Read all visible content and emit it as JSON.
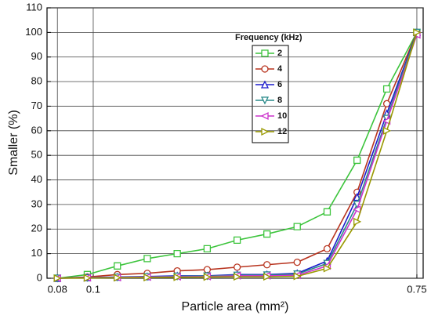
{
  "chart_data": {
    "type": "line",
    "x_label": "Particle area (mm²)",
    "y_label": "Smaller (%)",
    "legend_title": "Frequency (kHz)",
    "xscale": "log",
    "grid": true,
    "xlim": [
      0.075,
      0.78
    ],
    "xticks": [
      0.08,
      0.1,
      0.75
    ],
    "ylim": [
      0,
      110
    ],
    "yticks": [
      0,
      10,
      20,
      30,
      40,
      50,
      60,
      70,
      80,
      90,
      100,
      110
    ],
    "x": [
      0.08,
      0.0964,
      0.1162,
      0.14,
      0.1687,
      0.2033,
      0.245,
      0.295,
      0.356,
      0.429,
      0.517,
      0.622,
      0.75
    ],
    "series": [
      {
        "name": "2",
        "color": "#3cc43c",
        "marker": "square",
        "values": [
          0,
          1.5,
          5,
          8,
          10,
          12,
          15.5,
          18,
          21,
          27,
          48,
          77,
          100
        ]
      },
      {
        "name": "4",
        "color": "#b8341f",
        "marker": "circle",
        "values": [
          0,
          0.5,
          1.5,
          2,
          3,
          3.5,
          4.5,
          5.5,
          6.5,
          12,
          35,
          71,
          100
        ]
      },
      {
        "name": "6",
        "color": "#1a1acc",
        "marker": "triangle-up",
        "values": [
          0,
          0.3,
          0.5,
          0.7,
          1,
          1,
          1.5,
          1.5,
          2,
          7,
          33,
          67,
          100
        ]
      },
      {
        "name": "8",
        "color": "#2a8a8a",
        "marker": "triangle-down",
        "values": [
          0,
          0.2,
          0.4,
          0.6,
          0.8,
          0.9,
          1.2,
          1.3,
          1.7,
          6,
          30,
          65,
          100
        ]
      },
      {
        "name": "10",
        "color": "#cc33cc",
        "marker": "triangle-left",
        "values": [
          0,
          0.2,
          0.3,
          0.5,
          0.6,
          0.7,
          1,
          1,
          1.2,
          5,
          28,
          64,
          99
        ]
      },
      {
        "name": "12",
        "color": "#999900",
        "marker": "triangle-right",
        "values": [
          0,
          0.1,
          0.2,
          0.3,
          0.4,
          0.5,
          0.6,
          0.6,
          0.8,
          4,
          23,
          60,
          100
        ]
      }
    ]
  }
}
